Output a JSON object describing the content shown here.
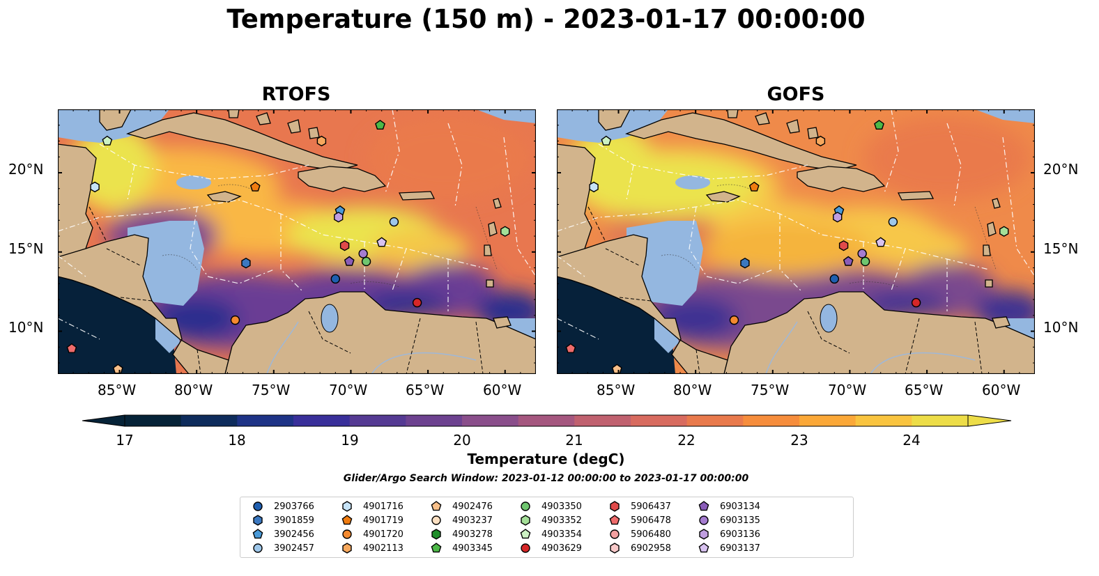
{
  "title": "Temperature (150 m) - 2023-01-17 00:00:00",
  "panels": [
    {
      "name": "RTOFS"
    },
    {
      "name": "GOFS"
    }
  ],
  "lon_ticks": [
    "85°W",
    "80°W",
    "75°W",
    "70°W",
    "65°W",
    "60°W"
  ],
  "lat_ticks": [
    "20°N",
    "15°N",
    "10°N"
  ],
  "colors": {
    "land": "#d2b48c",
    "shelf_water": "#94b7e0",
    "deep_cold": "#06213a",
    "coastline": "#000000",
    "eez": "#ffffff"
  },
  "colorbar": {
    "label": "Temperature (degC)",
    "ticks": [
      "17",
      "18",
      "19",
      "20",
      "21",
      "22",
      "23",
      "24"
    ],
    "min": 17,
    "max": 24.5,
    "colors": [
      "#062338",
      "#0e2c5c",
      "#1e3386",
      "#392f9a",
      "#553a93",
      "#6d4290",
      "#8a4e8b",
      "#a5577f",
      "#c0616f",
      "#d86b5f",
      "#e97a4c",
      "#f68d3c",
      "#fba838",
      "#f9c43f",
      "#eddd48"
    ]
  },
  "search_window": "Glider/Argo Search Window: 2023-01-12 00:00:00 to 2023-01-17 00:00:00",
  "legend": [
    {
      "id": "2903766",
      "color": "#1f5fb0",
      "shape": "circle"
    },
    {
      "id": "3901859",
      "color": "#3b78c0",
      "shape": "hexagon"
    },
    {
      "id": "3902456",
      "color": "#4a9ad8",
      "shape": "pentagon"
    },
    {
      "id": "3902457",
      "color": "#9ec7ea",
      "shape": "circle"
    },
    {
      "id": "4901716",
      "color": "#c6e3f7",
      "shape": "hexagon"
    },
    {
      "id": "4901719",
      "color": "#f07c10",
      "shape": "pentagon"
    },
    {
      "id": "4901720",
      "color": "#f48a30",
      "shape": "circle"
    },
    {
      "id": "4902113",
      "color": "#f7a85d",
      "shape": "hexagon"
    },
    {
      "id": "4902476",
      "color": "#f8c08a",
      "shape": "pentagon"
    },
    {
      "id": "4903237",
      "color": "#fde0c2",
      "shape": "circle"
    },
    {
      "id": "4903278",
      "color": "#1e8e2a",
      "shape": "hexagon"
    },
    {
      "id": "4903345",
      "color": "#4db848",
      "shape": "pentagon"
    },
    {
      "id": "4903350",
      "color": "#6fc66f",
      "shape": "circle"
    },
    {
      "id": "4903352",
      "color": "#a4df98",
      "shape": "hexagon"
    },
    {
      "id": "4903354",
      "color": "#cdf2c4",
      "shape": "pentagon"
    },
    {
      "id": "4903629",
      "color": "#d62728",
      "shape": "circle"
    },
    {
      "id": "5906437",
      "color": "#e04a4a",
      "shape": "hexagon"
    },
    {
      "id": "5906478",
      "color": "#ee6b6b",
      "shape": "pentagon"
    },
    {
      "id": "5906480",
      "color": "#f2a0a0",
      "shape": "circle"
    },
    {
      "id": "6902958",
      "color": "#f8c9c9",
      "shape": "hexagon"
    },
    {
      "id": "6903134",
      "color": "#8a5db8",
      "shape": "pentagon"
    },
    {
      "id": "6903135",
      "color": "#a57cd0",
      "shape": "circle"
    },
    {
      "id": "6903136",
      "color": "#c09ee0",
      "shape": "hexagon"
    },
    {
      "id": "6903137",
      "color": "#d8c2f0",
      "shape": "pentagon"
    }
  ],
  "floats": [
    {
      "id": "4903354",
      "lon": -85.8,
      "lat": 22.0
    },
    {
      "id": "4901716",
      "lon": -86.6,
      "lat": 19.1
    },
    {
      "id": "4903345",
      "lon": -68.1,
      "lat": 23.0
    },
    {
      "id": "4902113",
      "lon": -71.9,
      "lat": 22.0
    },
    {
      "id": "4901719",
      "lon": -76.2,
      "lat": 19.1
    },
    {
      "id": "3902456",
      "lon": -70.7,
      "lat": 17.6
    },
    {
      "id": "6903136",
      "lon": -70.8,
      "lat": 17.2
    },
    {
      "id": "3902457",
      "lon": -67.2,
      "lat": 16.9
    },
    {
      "id": "4903352",
      "lon": -60.0,
      "lat": 16.3
    },
    {
      "id": "6903137",
      "lon": -68.0,
      "lat": 15.6
    },
    {
      "id": "5906437",
      "lon": -70.4,
      "lat": 15.4
    },
    {
      "id": "6903135",
      "lon": -69.2,
      "lat": 14.9
    },
    {
      "id": "6903134",
      "lon": -70.1,
      "lat": 14.4
    },
    {
      "id": "4903350",
      "lon": -69.0,
      "lat": 14.4
    },
    {
      "id": "3901859",
      "lon": -76.8,
      "lat": 14.3
    },
    {
      "id": "2903766",
      "lon": -71.0,
      "lat": 13.3
    },
    {
      "id": "4903629",
      "lon": -65.7,
      "lat": 11.8
    },
    {
      "id": "4901720",
      "lon": -77.5,
      "lat": 10.7
    },
    {
      "id": "5906478",
      "lon": -88.1,
      "lat": 8.9
    },
    {
      "id": "4902476",
      "lon": -85.1,
      "lat": 7.6
    }
  ]
}
